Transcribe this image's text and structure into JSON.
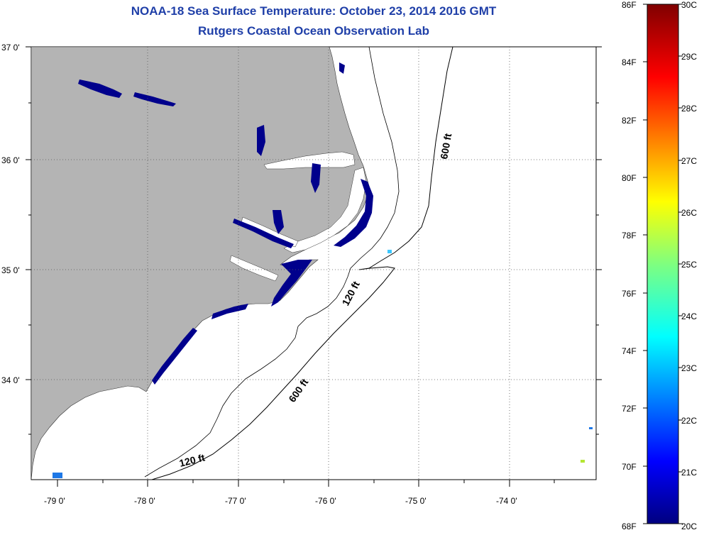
{
  "title": "NOAA-18 Sea Surface Temperature:  October 23, 2014 2016 GMT",
  "subtitle": "Rutgers Coastal Ocean Observation Lab",
  "map": {
    "lat_labels": [
      "37 0'",
      "36 0'",
      "35 0'",
      "34 0'"
    ],
    "lon_labels": [
      "-79 0'",
      "-78 0'",
      "-77 0'",
      "-76 0'",
      "-75 0'",
      "-74 0'"
    ],
    "contour_labels": [
      "600 ft",
      "120 ft",
      "600 ft",
      "120 ft"
    ],
    "land_color": "#b4b4b4",
    "ocean_color": "#ffffff",
    "sst_color": "#00008c"
  },
  "colorbar": {
    "f_labels": [
      "86F",
      "84F",
      "82F",
      "80F",
      "78F",
      "76F",
      "74F",
      "72F",
      "70F",
      "68F"
    ],
    "c_labels": [
      "30C",
      "29C",
      "28C",
      "27C",
      "26C",
      "25C",
      "24C",
      "23C",
      "22C",
      "21C",
      "20C"
    ],
    "range_c": [
      20,
      30
    ],
    "range_f": [
      68,
      86
    ]
  }
}
